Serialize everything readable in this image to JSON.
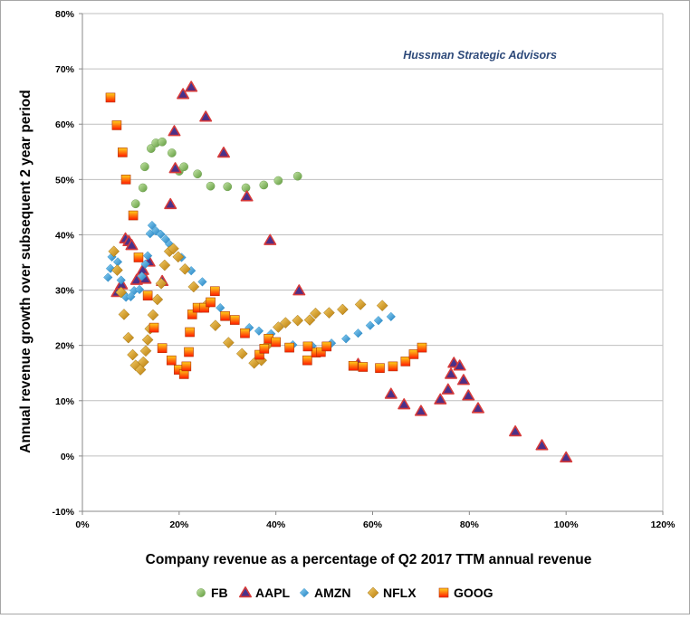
{
  "chart_data": {
    "type": "scatter",
    "watermark": "Hussman Strategic Advisors",
    "xlabel": "Company revenue as a percentage of Q2 2017 TTM annual revenue",
    "ylabel": "Annual revenue growth over subsequent 2 year period",
    "xlim": [
      0,
      120
    ],
    "ylim": [
      -10,
      80
    ],
    "x_ticks": [
      0,
      20,
      40,
      60,
      80,
      100,
      120
    ],
    "y_ticks": [
      -10,
      0,
      10,
      20,
      30,
      40,
      50,
      60,
      70,
      80
    ],
    "x_tick_labels": [
      "0%",
      "20%",
      "40%",
      "60%",
      "80%",
      "100%",
      "120%"
    ],
    "y_tick_labels": [
      "-10%",
      "0%",
      "10%",
      "20%",
      "30%",
      "40%",
      "50%",
      "60%",
      "70%",
      "80%"
    ],
    "grid": "horizontal",
    "legend_position": "bottom",
    "series": [
      {
        "name": "FB",
        "marker": "circle",
        "color": "#8dc26a",
        "points": [
          [
            12.5,
            48.5
          ],
          [
            12.9,
            52.3
          ],
          [
            14.2,
            55.6
          ],
          [
            15.2,
            56.6
          ],
          [
            16.5,
            56.8
          ],
          [
            18.5,
            54.8
          ],
          [
            20,
            51.5
          ],
          [
            21,
            52.3
          ],
          [
            23.8,
            51
          ],
          [
            26.5,
            48.8
          ],
          [
            30,
            48.7
          ],
          [
            33.8,
            48.5
          ],
          [
            37.5,
            49
          ],
          [
            40.5,
            49.8
          ],
          [
            44.5,
            50.6
          ],
          [
            11,
            45.6
          ]
        ]
      },
      {
        "name": "AAPL",
        "marker": "triangle",
        "color": "#d63a3a",
        "points": [
          [
            7.2,
            29.6
          ],
          [
            8.1,
            31
          ],
          [
            8.9,
            39.3
          ],
          [
            9.6,
            38.8
          ],
          [
            10.2,
            38.1
          ],
          [
            11.2,
            31.8
          ],
          [
            12.5,
            33.6
          ],
          [
            13,
            32
          ],
          [
            13.8,
            35.1
          ],
          [
            16.5,
            31.6
          ],
          [
            18.2,
            45.5
          ],
          [
            19,
            58.7
          ],
          [
            19.2,
            52
          ],
          [
            20.8,
            65.4
          ],
          [
            22.5,
            66.7
          ],
          [
            25.5,
            61.3
          ],
          [
            29.2,
            54.8
          ],
          [
            34,
            46.9
          ],
          [
            38.8,
            39
          ],
          [
            44.8,
            29.9
          ],
          [
            57,
            16.6
          ],
          [
            63.8,
            11.2
          ],
          [
            66.5,
            9.3
          ],
          [
            70,
            8.1
          ],
          [
            74,
            10.2
          ],
          [
            75.6,
            12
          ],
          [
            76.2,
            14.8
          ],
          [
            76.8,
            16.8
          ],
          [
            78,
            16.3
          ],
          [
            78.8,
            13.7
          ],
          [
            79.8,
            10.9
          ],
          [
            81.8,
            8.6
          ],
          [
            89.5,
            4.4
          ],
          [
            95,
            1.9
          ],
          [
            100,
            -0.3
          ]
        ]
      },
      {
        "name": "AMZN",
        "marker": "diamond",
        "color": "#3da0d8",
        "points": [
          [
            5.3,
            32.3
          ],
          [
            5.8,
            33.9
          ],
          [
            6.1,
            36
          ],
          [
            6.5,
            36.9
          ],
          [
            7.3,
            35.1
          ],
          [
            8,
            31.8
          ],
          [
            8.5,
            29.3
          ],
          [
            9,
            28.7
          ],
          [
            10,
            28.8
          ],
          [
            10.7,
            29.9
          ],
          [
            11.8,
            30.1
          ],
          [
            12.3,
            32.5
          ],
          [
            13,
            34.7
          ],
          [
            13.5,
            36.2
          ],
          [
            14,
            40.2
          ],
          [
            14.4,
            41.7
          ],
          [
            15.2,
            40.7
          ],
          [
            16.2,
            40.1
          ],
          [
            17.2,
            39.2
          ],
          [
            18,
            38.3
          ],
          [
            18.8,
            37.4
          ],
          [
            20.5,
            35.9
          ],
          [
            22.5,
            33.5
          ],
          [
            24.8,
            31.5
          ],
          [
            28.5,
            26.8
          ],
          [
            31.5,
            24.6
          ],
          [
            34.5,
            23.2
          ],
          [
            36.5,
            22.6
          ],
          [
            39,
            22.1
          ],
          [
            43.5,
            20.1
          ],
          [
            47.5,
            19.9
          ],
          [
            51.5,
            20.4
          ],
          [
            54.5,
            21.2
          ],
          [
            57,
            22.2
          ],
          [
            59.5,
            23.6
          ],
          [
            61.2,
            24.5
          ],
          [
            63.8,
            25.2
          ]
        ]
      },
      {
        "name": "NFLX",
        "marker": "diamond",
        "color": "#e3a21a",
        "points": [
          [
            6.5,
            37
          ],
          [
            7.2,
            33.6
          ],
          [
            8,
            29.6
          ],
          [
            8.6,
            25.6
          ],
          [
            9.5,
            21.4
          ],
          [
            10.4,
            18.3
          ],
          [
            11,
            16.4
          ],
          [
            12,
            15.6
          ],
          [
            12.6,
            17
          ],
          [
            13.1,
            19
          ],
          [
            13.5,
            21
          ],
          [
            14,
            23
          ],
          [
            14.6,
            25.5
          ],
          [
            15.5,
            28.3
          ],
          [
            16.3,
            31.2
          ],
          [
            17,
            34.5
          ],
          [
            18,
            37
          ],
          [
            18.8,
            37.5
          ],
          [
            19.8,
            36
          ],
          [
            21.2,
            33.8
          ],
          [
            23,
            30.6
          ],
          [
            25.5,
            27.2
          ],
          [
            27.5,
            23.6
          ],
          [
            30.2,
            20.5
          ],
          [
            33,
            18.5
          ],
          [
            35.5,
            16.8
          ],
          [
            37,
            17.3
          ],
          [
            38.2,
            20
          ],
          [
            40.5,
            23.3
          ],
          [
            42,
            24.1
          ],
          [
            44.5,
            24.5
          ],
          [
            47,
            24.6
          ],
          [
            48.2,
            25.8
          ],
          [
            51,
            25.9
          ],
          [
            53.8,
            26.5
          ],
          [
            57.5,
            27.4
          ],
          [
            62,
            27.2
          ]
        ]
      },
      {
        "name": "GOOG",
        "marker": "square",
        "color": "#ff2a00",
        "points": [
          [
            5.8,
            64.8
          ],
          [
            7.1,
            59.8
          ],
          [
            8.3,
            54.9
          ],
          [
            9,
            50
          ],
          [
            10.5,
            43.5
          ],
          [
            11.6,
            35.9
          ],
          [
            13.5,
            29
          ],
          [
            14.8,
            23.2
          ],
          [
            16.5,
            19.5
          ],
          [
            18.4,
            17.3
          ],
          [
            19.9,
            15.6
          ],
          [
            21,
            14.8
          ],
          [
            21.5,
            16.2
          ],
          [
            22,
            18.8
          ],
          [
            22.2,
            22.4
          ],
          [
            22.7,
            25.6
          ],
          [
            23.8,
            26.8
          ],
          [
            25.2,
            26.8
          ],
          [
            26.5,
            27.8
          ],
          [
            27.4,
            29.8
          ],
          [
            29.5,
            25.3
          ],
          [
            31.5,
            24.6
          ],
          [
            33.6,
            22.2
          ],
          [
            36.6,
            18.3
          ],
          [
            37.6,
            19.4
          ],
          [
            38.5,
            21.2
          ],
          [
            40,
            20.6
          ],
          [
            42.8,
            19.6
          ],
          [
            46.5,
            17.3
          ],
          [
            48.3,
            18.7
          ],
          [
            49.3,
            18.8
          ],
          [
            50.5,
            19.8
          ],
          [
            56,
            16.3
          ],
          [
            58,
            16.1
          ],
          [
            61.5,
            15.9
          ],
          [
            64.2,
            16.2
          ],
          [
            66.8,
            17.1
          ],
          [
            68.5,
            18.4
          ],
          [
            70.2,
            19.6
          ],
          [
            46.6,
            19.8
          ]
        ]
      }
    ]
  }
}
